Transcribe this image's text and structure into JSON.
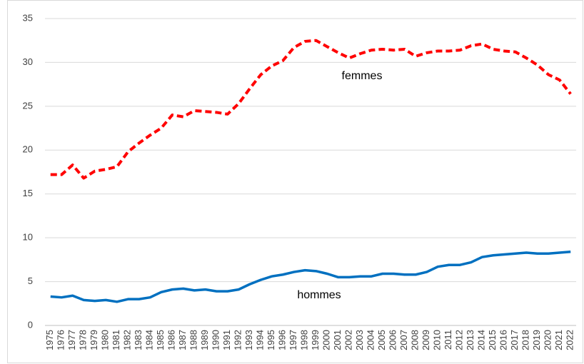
{
  "chart_data": {
    "type": "line",
    "categories": [
      "1975",
      "1976",
      "1977",
      "1978",
      "1979",
      "1980",
      "1981",
      "1982",
      "1983",
      "1984",
      "1985",
      "1986",
      "1987",
      "1988",
      "1989",
      "1990",
      "1991",
      "1992",
      "1993",
      "1994",
      "1995",
      "1996",
      "1997",
      "1998",
      "1999",
      "2000",
      "2001",
      "2002",
      "2003",
      "2004",
      "2005",
      "2006",
      "2007",
      "2008",
      "2009",
      "2010",
      "2011",
      "2012",
      "2013",
      "2014",
      "2015",
      "2016",
      "2017",
      "2018",
      "2019",
      "2020",
      "2021",
      "2022"
    ],
    "series": [
      {
        "name": "femmes",
        "color": "#ff0000",
        "dashed": true,
        "values": [
          17.2,
          17.2,
          18.3,
          16.8,
          17.6,
          17.8,
          18.1,
          19.8,
          20.8,
          21.7,
          22.5,
          24.0,
          23.8,
          24.5,
          24.4,
          24.3,
          24.1,
          25.3,
          27.0,
          28.6,
          29.6,
          30.2,
          31.7,
          32.4,
          32.5,
          31.8,
          31.1,
          30.5,
          31.0,
          31.4,
          31.5,
          31.4,
          31.5,
          30.7,
          31.1,
          31.3,
          31.3,
          31.4,
          31.9,
          32.1,
          31.5,
          31.3,
          31.2,
          30.5,
          29.7,
          28.6,
          28.0,
          26.4
        ]
      },
      {
        "name": "hommes",
        "color": "#0070c0",
        "dashed": false,
        "values": [
          3.3,
          3.2,
          3.4,
          2.9,
          2.8,
          2.9,
          2.7,
          3.0,
          3.0,
          3.2,
          3.8,
          4.1,
          4.2,
          4.0,
          4.1,
          3.9,
          3.9,
          4.1,
          4.7,
          5.2,
          5.6,
          5.8,
          6.1,
          6.3,
          6.2,
          5.9,
          5.5,
          5.5,
          5.6,
          5.6,
          5.9,
          5.9,
          5.8,
          5.8,
          6.1,
          6.7,
          6.9,
          6.9,
          7.2,
          7.8,
          8.0,
          8.1,
          8.2,
          8.3,
          8.2,
          8.2,
          8.3,
          8.4
        ]
      }
    ],
    "ylim": [
      0,
      35
    ],
    "yticks": [
      0,
      5,
      10,
      15,
      20,
      25,
      30,
      35
    ],
    "grid": true
  }
}
